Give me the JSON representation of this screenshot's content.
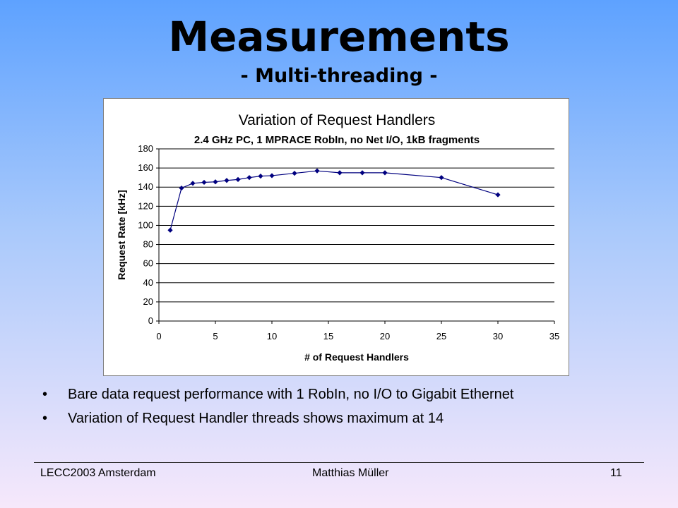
{
  "slide": {
    "title": "Measurements",
    "subtitle": "- Multi-threading -"
  },
  "bullets": [
    {
      "text": "Bare data request performance with 1 RobIn, no I/O to Gigabit Ethernet"
    },
    {
      "text": "Variation of Request Handler threads shows maximum at 14"
    }
  ],
  "footer": {
    "left": "LECC2003 Amsterdam",
    "center": "Matthias Müller",
    "right": "11"
  },
  "chart_data": {
    "type": "line",
    "title": "Variation of Request Handlers",
    "subtitle": "2.4 GHz PC, 1 MPRACE RobIn, no Net I/O, 1kB fragments",
    "xlabel": "# of Request Handlers",
    "ylabel": "Request Rate [kHz]",
    "xlim": [
      0,
      35
    ],
    "ylim": [
      0,
      180
    ],
    "xticks": [
      0,
      5,
      10,
      15,
      20,
      25,
      30,
      35
    ],
    "yticks": [
      0,
      20,
      40,
      60,
      80,
      100,
      120,
      140,
      160,
      180
    ],
    "grid": "horizontal",
    "series_color": "#00007f",
    "series": [
      {
        "x": [
          1,
          2,
          3,
          4,
          5,
          6,
          7,
          8,
          9,
          10,
          12,
          14,
          16,
          18,
          20,
          25,
          30
        ],
        "y": [
          95,
          139,
          144,
          145,
          145.5,
          147,
          148,
          150,
          151.5,
          152,
          154.5,
          157,
          155,
          155,
          155,
          150,
          132
        ]
      }
    ]
  }
}
